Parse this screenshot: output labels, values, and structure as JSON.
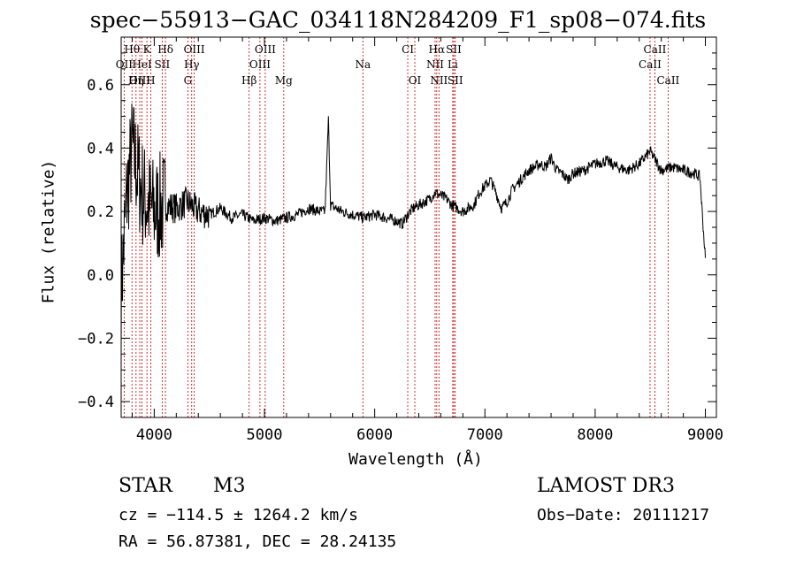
{
  "title": "spec−55913−GAC_034118N284209_F1_sp08−074.fits",
  "object": {
    "class": "STAR",
    "subclass": "M3"
  },
  "survey": "LAMOST DR3",
  "velocity_text": "cz = −114.5 ± 1264.2 km/s",
  "obs_date_text": "Obs−Date: 20111217",
  "coords_text": "RA =  56.87381, DEC =  28.24135",
  "chart_data": {
    "type": "line",
    "xlabel": "Wavelength (Å)",
    "ylabel": "Flux (relative)",
    "xlim": [
      3700,
      9100
    ],
    "ylim": [
      -0.45,
      0.75
    ],
    "x_ticks": [
      4000,
      5000,
      6000,
      7000,
      8000,
      9000
    ],
    "x_tick_labels": [
      "4000",
      "5000",
      "6000",
      "7000",
      "8000",
      "9000"
    ],
    "y_ticks": [
      -0.4,
      -0.2,
      0.0,
      0.2,
      0.4,
      0.6
    ],
    "y_tick_labels": [
      "−0.4",
      "−0.2",
      "0.0",
      "0.2",
      "0.4",
      "0.6"
    ],
    "grid": false,
    "series": [
      {
        "x": [
          3700,
          3750,
          3800,
          3850,
          3900,
          3950,
          4000,
          4100,
          4200,
          4300,
          4400,
          4500,
          4600,
          4700,
          4800,
          4900,
          5000,
          5100,
          5200,
          5300,
          5400,
          5500,
          5550,
          5580,
          5600,
          5700,
          5800,
          5900,
          6000,
          6100,
          6200,
          6250,
          6300,
          6350,
          6400,
          6450,
          6500,
          6550,
          6600,
          6650,
          6700,
          6750,
          6800,
          6850,
          6900,
          6950,
          7000,
          7050,
          7100,
          7150,
          7200,
          7250,
          7300,
          7350,
          7400,
          7450,
          7500,
          7550,
          7600,
          7650,
          7700,
          7750,
          7800,
          7900,
          8000,
          8100,
          8200,
          8300,
          8400,
          8450,
          8500,
          8550,
          8600,
          8700,
          8800,
          8900,
          8950,
          9000
        ],
        "y": [
          -0.05,
          0.25,
          0.4,
          0.32,
          0.25,
          0.22,
          0.2,
          0.22,
          0.21,
          0.23,
          0.2,
          0.19,
          0.21,
          0.18,
          0.19,
          0.17,
          0.18,
          0.17,
          0.18,
          0.19,
          0.21,
          0.2,
          0.2,
          0.49,
          0.22,
          0.2,
          0.19,
          0.18,
          0.19,
          0.18,
          0.17,
          0.16,
          0.19,
          0.21,
          0.22,
          0.23,
          0.24,
          0.26,
          0.25,
          0.24,
          0.22,
          0.21,
          0.2,
          0.21,
          0.22,
          0.26,
          0.28,
          0.3,
          0.26,
          0.21,
          0.23,
          0.27,
          0.29,
          0.31,
          0.33,
          0.34,
          0.35,
          0.34,
          0.37,
          0.33,
          0.32,
          0.3,
          0.32,
          0.33,
          0.35,
          0.36,
          0.34,
          0.33,
          0.35,
          0.37,
          0.39,
          0.36,
          0.33,
          0.34,
          0.33,
          0.32,
          0.31,
          0.05
        ]
      }
    ],
    "lines": [
      {
        "label": "Hθ",
        "x": 3798,
        "row": 0
      },
      {
        "label": "K",
        "x": 3934,
        "row": 0
      },
      {
        "label": "Hδ",
        "x": 4102,
        "row": 0
      },
      {
        "label": "OIII",
        "x": 4363,
        "row": 0
      },
      {
        "label": "OIII",
        "x": 5007,
        "row": 0
      },
      {
        "label": "CI",
        "x": 6300,
        "row": 0
      },
      {
        "label": "Hα",
        "x": 6563,
        "row": 0
      },
      {
        "label": "SII",
        "x": 6717,
        "row": 0
      },
      {
        "label": "CaII",
        "x": 8542,
        "row": 0
      },
      {
        "label": "OII",
        "x": 3727,
        "row": 1
      },
      {
        "label": "HeI",
        "x": 3889,
        "row": 1
      },
      {
        "label": "SII",
        "x": 4072,
        "row": 1
      },
      {
        "label": "Hγ",
        "x": 4340,
        "row": 1
      },
      {
        "label": "OIII",
        "x": 4959,
        "row": 1
      },
      {
        "label": "Na",
        "x": 5893,
        "row": 1
      },
      {
        "label": "NII",
        "x": 6548,
        "row": 1
      },
      {
        "label": "Li",
        "x": 6708,
        "row": 1
      },
      {
        "label": "CaII",
        "x": 8498,
        "row": 1
      },
      {
        "label": "OIII",
        "x": 3869,
        "row": 2
      },
      {
        "label": "Hη",
        "x": 3835,
        "row": 2
      },
      {
        "label": "H",
        "x": 3968,
        "row": 2
      },
      {
        "label": "G",
        "x": 4305,
        "row": 2
      },
      {
        "label": "Hβ",
        "x": 4861,
        "row": 2
      },
      {
        "label": "Mg",
        "x": 5175,
        "row": 2
      },
      {
        "label": "OI",
        "x": 6364,
        "row": 2
      },
      {
        "label": "NII",
        "x": 6583,
        "row": 2
      },
      {
        "label": "SII",
        "x": 6731,
        "row": 2
      },
      {
        "label": "CaII",
        "x": 8662,
        "row": 2
      }
    ]
  }
}
